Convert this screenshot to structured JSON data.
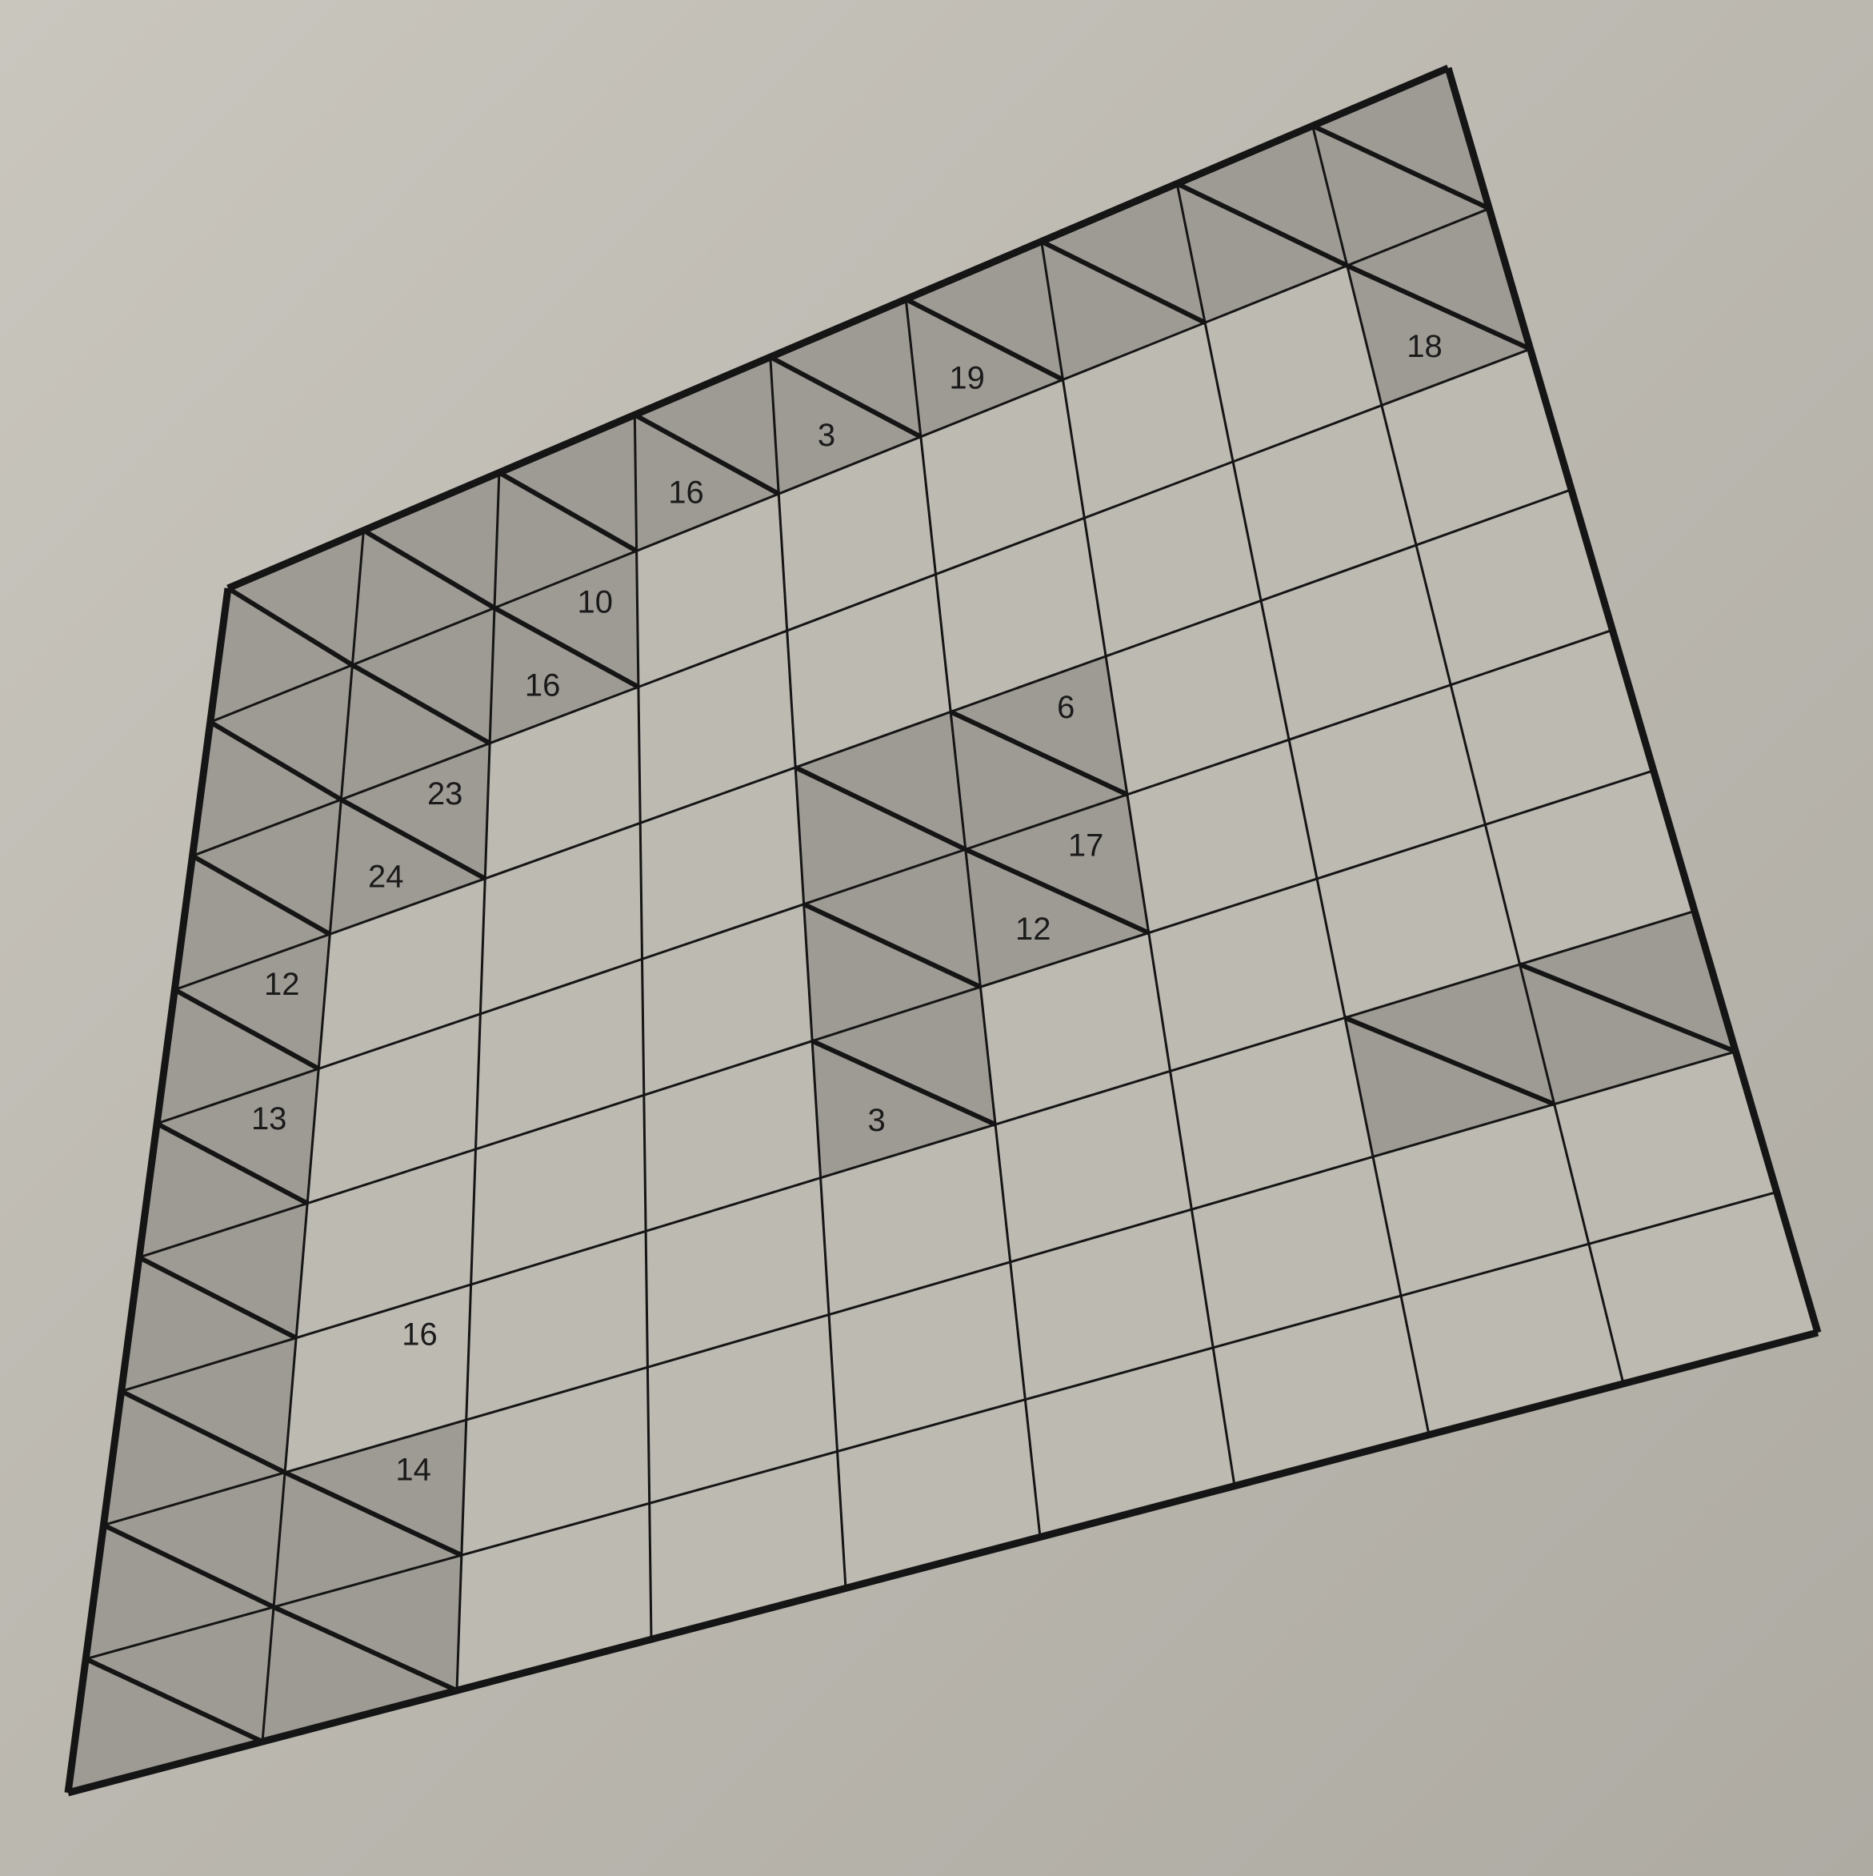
{
  "puzzle": {
    "type": "kakuro",
    "rows": 9,
    "cols": 9,
    "colors": {
      "paper": "#bdbab2",
      "blank_cell": "#bdbab2",
      "black_cell": "#9e9b94",
      "grid_line": "#151515"
    },
    "black_cells": [
      [
        0,
        0
      ],
      [
        0,
        1
      ],
      [
        0,
        2
      ],
      [
        0,
        3
      ],
      [
        0,
        4
      ],
      [
        0,
        5
      ],
      [
        0,
        6
      ],
      [
        0,
        7
      ],
      [
        0,
        8
      ],
      [
        1,
        0
      ],
      [
        1,
        1
      ],
      [
        1,
        2
      ],
      [
        1,
        8
      ],
      [
        2,
        0
      ],
      [
        2,
        1
      ],
      [
        3,
        0
      ],
      [
        3,
        4
      ],
      [
        3,
        5
      ],
      [
        4,
        0
      ],
      [
        4,
        4
      ],
      [
        4,
        5
      ],
      [
        5,
        0
      ],
      [
        5,
        4
      ],
      [
        6,
        0
      ],
      [
        6,
        7
      ],
      [
        6,
        8
      ],
      [
        7,
        0
      ],
      [
        7,
        1
      ],
      [
        8,
        0
      ],
      [
        8,
        1
      ]
    ],
    "clues": [
      {
        "row": 0,
        "col": 3,
        "down": "16"
      },
      {
        "row": 0,
        "col": 4,
        "down": "3"
      },
      {
        "row": 0,
        "col": 5,
        "down": "19"
      },
      {
        "row": 1,
        "col": 2,
        "right": "10",
        "down": "16"
      },
      {
        "row": 1,
        "col": 8,
        "down": "18"
      },
      {
        "row": 2,
        "col": 1,
        "down": "24"
      },
      {
        "row": 2,
        "col": 1,
        "right": "23"
      },
      {
        "row": 3,
        "col": 5,
        "right": "6"
      },
      {
        "row": 3,
        "col": 0,
        "right": "12"
      },
      {
        "row": 4,
        "col": 5,
        "right": "17",
        "down": "12"
      },
      {
        "row": 4,
        "col": 0,
        "right": "13"
      },
      {
        "row": 5,
        "col": 4,
        "down": "3"
      },
      {
        "row": 6,
        "col": 1,
        "right": "16"
      },
      {
        "row": 7,
        "col": 1,
        "right": "14"
      }
    ]
  }
}
